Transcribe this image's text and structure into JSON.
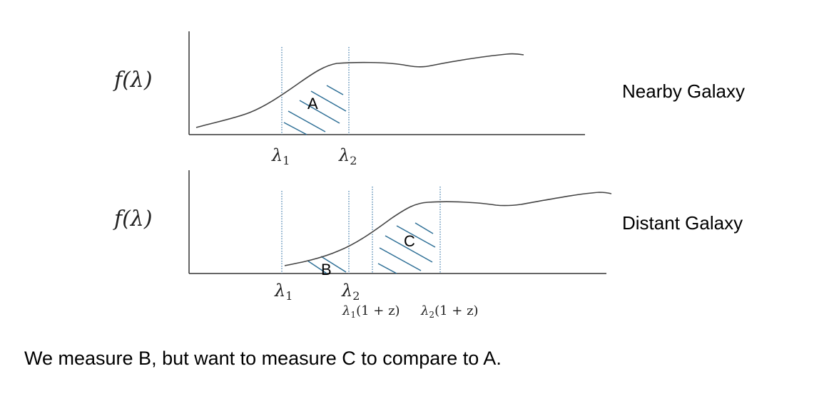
{
  "colors": {
    "axis": "#333333",
    "curve": "#444444",
    "guide": "#3a78a8",
    "hatch": "#2e6f96",
    "text": "#000000"
  },
  "top_panel": {
    "ylabel": "f(λ)",
    "name": "Nearby Galaxy",
    "ticks": {
      "l1_base": "λ",
      "l1_sub": "1",
      "l2_base": "λ",
      "l2_sub": "2"
    },
    "region_label": "A"
  },
  "bottom_panel": {
    "ylabel": "f(λ)",
    "name": "Distant Galaxy",
    "ticks": {
      "l1_base": "λ",
      "l1_sub": "1",
      "l2_base": "λ",
      "l2_sub": "2",
      "r1_base": "λ",
      "r1_sub": "1",
      "r1_tail": "(1 + z)",
      "r2_base": "λ",
      "r2_sub": "2",
      "r2_tail": "(1 + z)"
    },
    "region_b_label": "B",
    "region_c_label": "C"
  },
  "caption": "We measure B, but want to measure C to compare to A."
}
